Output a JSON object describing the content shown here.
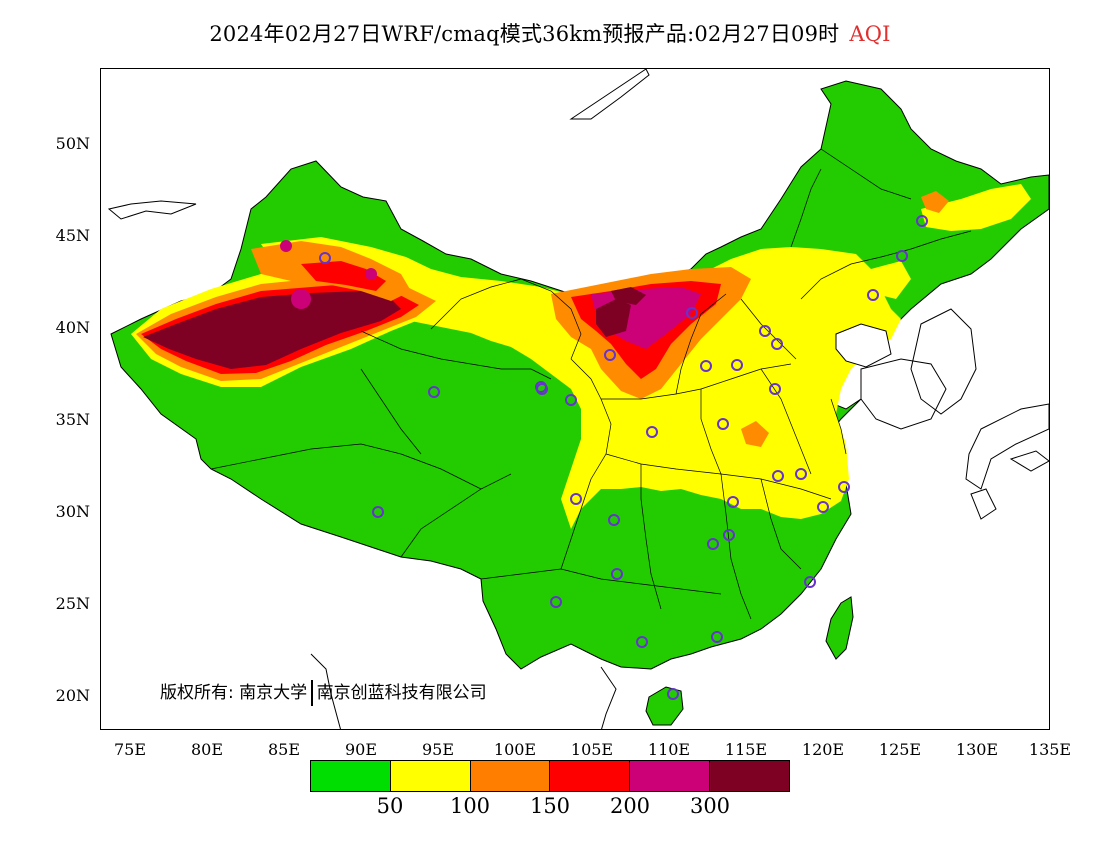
{
  "title": {
    "product": "2024年02月27日WRF/cmaq模式36km预报产品:02月27日09时",
    "variable": "AQI"
  },
  "axes": {
    "lat_labels": [
      "50N",
      "45N",
      "40N",
      "35N",
      "30N",
      "25N",
      "20N"
    ],
    "lon_labels": [
      "75E",
      "80E",
      "85E",
      "90E",
      "95E",
      "100E",
      "105E",
      "110E",
      "115E",
      "120E",
      "125E",
      "130E",
      "135E"
    ]
  },
  "copyright": {
    "prefix": "版权所有:",
    "org1": "南京大学",
    "org2": "南京创蓝科技有限公司"
  },
  "legend": {
    "colors": [
      "#00dd00",
      "#ffff00",
      "#ff7e00",
      "#ff0000",
      "#cc0077",
      "#7e0023"
    ],
    "ticks": [
      "50",
      "100",
      "150",
      "200",
      "300"
    ]
  },
  "map": {
    "colors": {
      "good": "#22cc00",
      "moderate": "#ffff00",
      "usg": "#ff8c00",
      "unhealthy": "#ff0000",
      "very_unhealthy": "#cc0077",
      "hazardous": "#7e0023",
      "station": "#6633cc"
    }
  }
}
